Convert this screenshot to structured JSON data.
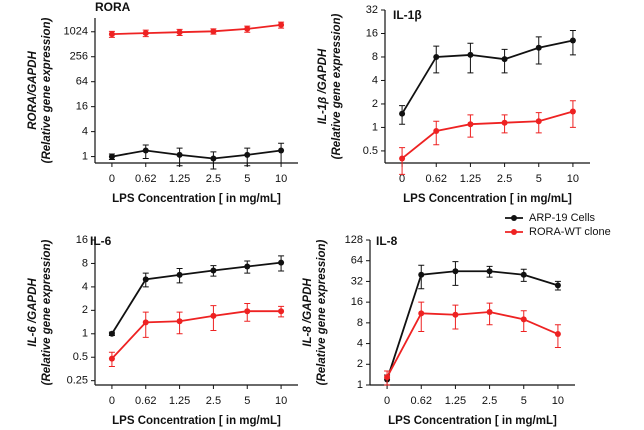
{
  "chart_data": [
    {
      "type": "line",
      "title": "RORA",
      "ylabel": "RORA/GAPDH",
      "ylabel_sub": "(Relative gene expression)",
      "xlabel": "LPS Concentration [ in mg/mL]",
      "categories": [
        "0",
        "0.62",
        "1.25",
        "2.5",
        "5",
        "10"
      ],
      "log_scale": true,
      "log_base": 2,
      "ylim": [
        0.7,
        2200
      ],
      "yticks": [
        1,
        4,
        16,
        64,
        256,
        1024
      ],
      "series": [
        {
          "color": "#111111",
          "values": [
            1,
            1.4,
            1.1,
            0.9,
            1.1,
            1.4
          ],
          "errors": [
            0.15,
            0.5,
            0.5,
            0.4,
            0.5,
            0.7
          ]
        },
        {
          "color": "#ee2222",
          "values": [
            900,
            950,
            1000,
            1050,
            1200,
            1500
          ],
          "errors": [
            150,
            170,
            170,
            150,
            200,
            250
          ]
        }
      ]
    },
    {
      "type": "line",
      "title": "IL-1β",
      "ylabel": "IL-1β /GAPDH",
      "ylabel_sub": "(Relative gene expression)",
      "xlabel": "LPS Concentration [ in mg/mL]",
      "categories": [
        "0",
        "0.62",
        "1.25",
        "2.5",
        "5",
        "10"
      ],
      "log_scale": true,
      "log_base": 2,
      "ylim": [
        0.35,
        32
      ],
      "yticks": [
        0.5,
        1,
        2,
        4,
        8,
        16,
        32
      ],
      "series": [
        {
          "color": "#111111",
          "values": [
            1.5,
            8,
            8.5,
            7.5,
            10.5,
            13
          ],
          "errors": [
            0.4,
            3,
            3.5,
            2.5,
            4,
            4.5
          ]
        },
        {
          "color": "#ee2222",
          "values": [
            0.4,
            0.9,
            1.1,
            1.15,
            1.2,
            1.6
          ],
          "errors": [
            0.15,
            0.3,
            0.35,
            0.3,
            0.35,
            0.6
          ]
        }
      ]
    },
    {
      "type": "line",
      "title": "IL-6",
      "ylabel": "IL-6 /GAPDH",
      "ylabel_sub": "(Relative gene expression)",
      "xlabel": "LPS Concentration [ in mg/mL]",
      "categories": [
        "0",
        "0.62",
        "1.25",
        "2.5",
        "5",
        "10"
      ],
      "log_scale": true,
      "log_base": 2,
      "ylim": [
        0.22,
        16
      ],
      "yticks": [
        0.25,
        0.5,
        1,
        2,
        4,
        8,
        16
      ],
      "series": [
        {
          "color": "#111111",
          "values": [
            1,
            5,
            5.7,
            6.5,
            7.3,
            8.2
          ],
          "errors": [
            0.05,
            1,
            1.2,
            1,
            1.3,
            1.8
          ]
        },
        {
          "color": "#ee2222",
          "values": [
            0.48,
            1.4,
            1.45,
            1.7,
            1.95,
            1.95
          ],
          "errors": [
            0.1,
            0.5,
            0.45,
            0.6,
            0.5,
            0.3
          ]
        }
      ]
    },
    {
      "type": "line",
      "title": "IL-8",
      "ylabel": "IL-8 /GAPDH",
      "ylabel_sub": "(Relative gene expression)",
      "xlabel": "LPS Concentration [ in mg/mL]",
      "categories": [
        "0",
        "0.62",
        "1.25",
        "2.5",
        "5",
        "10"
      ],
      "log_scale": true,
      "log_base": 2,
      "ylim": [
        1,
        128
      ],
      "yticks": [
        1,
        2,
        4,
        8,
        16,
        32,
        64,
        128
      ],
      "legend": "top-right",
      "series": [
        {
          "name": "ARP-19 Cells",
          "color": "#111111",
          "values": [
            1.2,
            40,
            45,
            45,
            40,
            28
          ],
          "errors": [
            0.2,
            15,
            17,
            8,
            8,
            4
          ]
        },
        {
          "name": "RORA-WT clone",
          "color": "#ee2222",
          "values": [
            1.3,
            11,
            10.5,
            11.5,
            9,
            5.5
          ],
          "errors": [
            0.3,
            5,
            4,
            4,
            3,
            2
          ]
        }
      ]
    }
  ]
}
